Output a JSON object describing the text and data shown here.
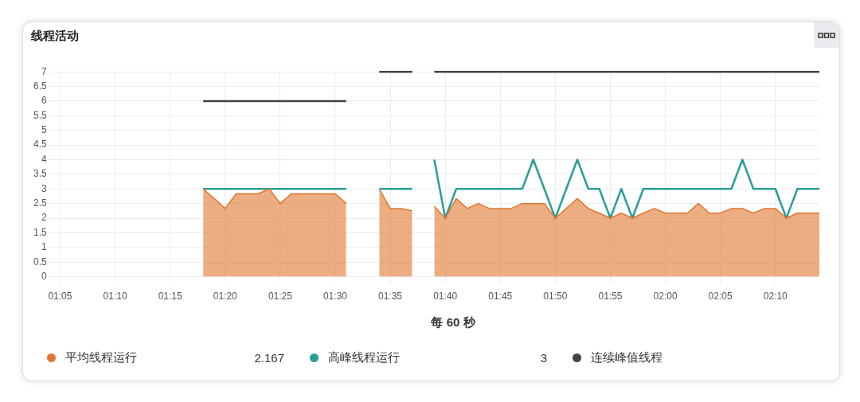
{
  "chart_data": {
    "type": "area",
    "title": "线程活动",
    "xlabel": "每 60 秒",
    "x": [
      1.3,
      1.3167,
      1.3333,
      1.35,
      1.3667,
      1.3833,
      1.4,
      1.4167,
      1.4333,
      1.45,
      1.4667,
      1.4833,
      1.5,
      1.5167,
      1.5333,
      1.55,
      1.5667,
      1.5833,
      1.6,
      1.6167,
      1.6333,
      1.65,
      1.6667,
      1.6833,
      1.7,
      1.7167,
      1.7333,
      1.75,
      1.7667,
      1.7833,
      1.8,
      1.8167,
      1.8333,
      1.85,
      1.8667,
      1.8833,
      1.9,
      1.9167,
      1.9333,
      1.95,
      1.9667,
      1.9833,
      2,
      2.0167,
      2.0333,
      2.05,
      2.0667,
      2.0833,
      2.1,
      2.1167,
      2.1333,
      2.15,
      2.1667,
      2.1833,
      2.2,
      2.2167,
      2.2333
    ],
    "series": [
      {
        "name": "平均线程运行",
        "color": "#e0762f",
        "values": [
          3,
          2.67,
          2.33,
          2.83,
          2.83,
          2.83,
          3,
          2.5,
          2.83,
          2.83,
          2.83,
          2.83,
          2.83,
          2.5,
          null,
          null,
          3,
          2.33,
          2.33,
          2.25,
          null,
          2.4,
          2,
          2.67,
          2.33,
          2.5,
          2.33,
          2.33,
          2.33,
          2.5,
          2.5,
          2.5,
          2,
          2.33,
          2.67,
          2.33,
          2.17,
          2,
          2.17,
          2,
          2.17,
          2.33,
          2.17,
          2.17,
          2.17,
          2.5,
          2.17,
          2.17,
          2.33,
          2.33,
          2.17,
          2.33,
          2.33,
          2,
          2.17,
          2.17,
          2.17
        ]
      },
      {
        "name": "高峰线程运行",
        "type": "line",
        "color": "#2a9d98",
        "values": [
          3,
          3,
          3,
          3,
          3,
          3,
          3,
          3,
          3,
          3,
          3,
          3,
          3,
          3,
          null,
          null,
          3,
          3,
          3,
          3,
          null,
          4,
          2,
          3,
          3,
          3,
          3,
          3,
          3,
          3,
          4,
          3,
          2,
          3,
          4,
          3,
          3,
          2,
          3,
          2,
          3,
          3,
          3,
          3,
          3,
          3,
          3,
          3,
          3,
          4,
          3,
          3,
          3,
          2,
          3,
          3,
          3
        ]
      },
      {
        "name": "连续峰值线程",
        "type": "line",
        "color": "#444444",
        "values": [
          6,
          6,
          6,
          6,
          6,
          6,
          6,
          6,
          6,
          6,
          6,
          6,
          6,
          6,
          null,
          null,
          7,
          7,
          7,
          7,
          null,
          7,
          7,
          7,
          7,
          7,
          7,
          7,
          7,
          7,
          7,
          7,
          7,
          7,
          7,
          7,
          7,
          7,
          7,
          7,
          7,
          7,
          7,
          7,
          7,
          7,
          7,
          7,
          7,
          7,
          7,
          7,
          7,
          7,
          7,
          7,
          7
        ]
      }
    ],
    "xlim": [
      1.0667,
      2.2333
    ],
    "xticks": [
      {
        "value": 1.0833,
        "label": "01:05"
      },
      {
        "value": 1.1667,
        "label": "01:10"
      },
      {
        "value": 1.25,
        "label": "01:15"
      },
      {
        "value": 1.3333,
        "label": "01:20"
      },
      {
        "value": 1.4167,
        "label": "01:25"
      },
      {
        "value": 1.5,
        "label": "01:30"
      },
      {
        "value": 1.5833,
        "label": "01:35"
      },
      {
        "value": 1.6667,
        "label": "01:40"
      },
      {
        "value": 1.75,
        "label": "01:45"
      },
      {
        "value": 1.8333,
        "label": "01:50"
      },
      {
        "value": 1.9167,
        "label": "01:55"
      },
      {
        "value": 2,
        "label": "02:00"
      },
      {
        "value": 2.0833,
        "label": "02:05"
      },
      {
        "value": 2.1667,
        "label": "02:10"
      }
    ],
    "ylim": [
      0,
      7
    ],
    "yticks": [
      0,
      0.5,
      1,
      1.5,
      2,
      2.5,
      3,
      3.5,
      4,
      4.5,
      5,
      5.5,
      6,
      6.5,
      7
    ],
    "grid": true,
    "legend": "bottom",
    "marker": "none",
    "line_style": "solid",
    "annotations": [
      "2.167",
      "3"
    ]
  }
}
